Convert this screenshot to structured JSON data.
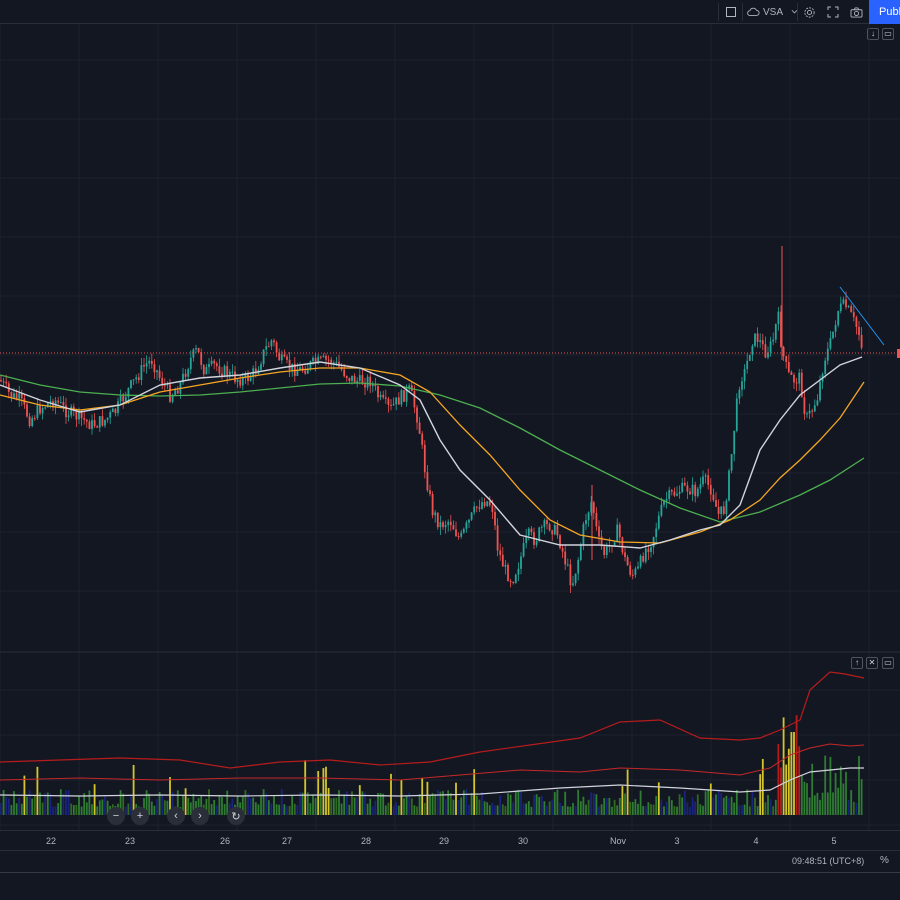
{
  "toolbar": {
    "indicator_label": "VSA",
    "publish_label": "Publish"
  },
  "icons": {
    "rect": "square-icon",
    "cloud": "cloud-icon",
    "chevron": "chevron-down-icon",
    "settings": "gear-icon",
    "fullscreen": "fullscreen-icon",
    "snapshot": "camera-icon"
  },
  "chart_data": {
    "type": "candlestick",
    "x_tick_labels": [
      "22",
      "23",
      "26",
      "27",
      "28",
      "29",
      "30",
      "Nov",
      "3",
      "4",
      "5"
    ],
    "colors": {
      "up": "#26a69a",
      "down": "#ef5350",
      "ma_fast": "#d1d4dc",
      "ma_mid": "#f5a623",
      "ma_slow": "#4caf50",
      "price_line": "#ef5350",
      "trendline": "#2196f3"
    },
    "close_path": [
      [
        0,
        380
      ],
      [
        10,
        395
      ],
      [
        20,
        400
      ],
      [
        30,
        420
      ],
      [
        40,
        408
      ],
      [
        55,
        400
      ],
      [
        65,
        410
      ],
      [
        80,
        418
      ],
      [
        92,
        425
      ],
      [
        105,
        420
      ],
      [
        115,
        412
      ],
      [
        125,
        395
      ],
      [
        135,
        380
      ],
      [
        145,
        365
      ],
      [
        152,
        360
      ],
      [
        160,
        378
      ],
      [
        170,
        395
      ],
      [
        180,
        385
      ],
      [
        190,
        360
      ],
      [
        197,
        350
      ],
      [
        205,
        372
      ],
      [
        215,
        365
      ],
      [
        225,
        372
      ],
      [
        235,
        378
      ],
      [
        245,
        380
      ],
      [
        255,
        372
      ],
      [
        265,
        350
      ],
      [
        272,
        340
      ],
      [
        280,
        360
      ],
      [
        290,
        368
      ],
      [
        300,
        370
      ],
      [
        310,
        365
      ],
      [
        320,
        362
      ],
      [
        330,
        360
      ],
      [
        340,
        368
      ],
      [
        350,
        378
      ],
      [
        360,
        382
      ],
      [
        370,
        380
      ],
      [
        380,
        400
      ],
      [
        390,
        410
      ],
      [
        400,
        398
      ],
      [
        410,
        390
      ],
      [
        418,
        420
      ],
      [
        425,
        470
      ],
      [
        432,
        510
      ],
      [
        440,
        525
      ],
      [
        450,
        520
      ],
      [
        460,
        540
      ],
      [
        470,
        520
      ],
      [
        478,
        505
      ],
      [
        485,
        500
      ],
      [
        492,
        505
      ],
      [
        498,
        550
      ],
      [
        505,
        570
      ],
      [
        512,
        580
      ],
      [
        520,
        560
      ],
      [
        528,
        535
      ],
      [
        535,
        540
      ],
      [
        542,
        528
      ],
      [
        550,
        525
      ],
      [
        558,
        535
      ],
      [
        565,
        560
      ],
      [
        572,
        585
      ],
      [
        578,
        560
      ],
      [
        585,
        520
      ],
      [
        592,
        500
      ],
      [
        598,
        540
      ],
      [
        605,
        555
      ],
      [
        612,
        540
      ],
      [
        618,
        530
      ],
      [
        625,
        560
      ],
      [
        632,
        575
      ],
      [
        638,
        570
      ],
      [
        645,
        550
      ],
      [
        652,
        540
      ],
      [
        658,
        520
      ],
      [
        665,
        500
      ],
      [
        672,
        495
      ],
      [
        680,
        490
      ],
      [
        688,
        488
      ],
      [
        696,
        492
      ],
      [
        704,
        480
      ],
      [
        712,
        490
      ],
      [
        718,
        515
      ],
      [
        724,
        510
      ],
      [
        730,
        470
      ],
      [
        735,
        420
      ],
      [
        740,
        378
      ],
      [
        745,
        372
      ],
      [
        752,
        340
      ],
      [
        758,
        338
      ],
      [
        765,
        352
      ],
      [
        772,
        345
      ],
      [
        778,
        315
      ],
      [
        782,
        350
      ],
      [
        788,
        375
      ],
      [
        794,
        380
      ],
      [
        800,
        378
      ],
      [
        806,
        420
      ],
      [
        812,
        410
      ],
      [
        818,
        395
      ],
      [
        824,
        360
      ],
      [
        830,
        345
      ],
      [
        838,
        310
      ],
      [
        845,
        305
      ],
      [
        852,
        318
      ],
      [
        858,
        330
      ],
      [
        864,
        352
      ]
    ],
    "ma_fast_path": [
      [
        0,
        385
      ],
      [
        40,
        400
      ],
      [
        80,
        412
      ],
      [
        120,
        405
      ],
      [
        160,
        385
      ],
      [
        200,
        378
      ],
      [
        240,
        375
      ],
      [
        280,
        368
      ],
      [
        320,
        362
      ],
      [
        360,
        368
      ],
      [
        400,
        385
      ],
      [
        420,
        400
      ],
      [
        440,
        440
      ],
      [
        460,
        470
      ],
      [
        490,
        500
      ],
      [
        520,
        535
      ],
      [
        560,
        545
      ],
      [
        600,
        545
      ],
      [
        640,
        548
      ],
      [
        670,
        540
      ],
      [
        700,
        530
      ],
      [
        720,
        525
      ],
      [
        740,
        505
      ],
      [
        760,
        450
      ],
      [
        780,
        420
      ],
      [
        800,
        395
      ],
      [
        820,
        380
      ],
      [
        840,
        365
      ],
      [
        862,
        357
      ]
    ],
    "ma_mid_path": [
      [
        0,
        395
      ],
      [
        40,
        405
      ],
      [
        80,
        410
      ],
      [
        120,
        405
      ],
      [
        160,
        392
      ],
      [
        200,
        385
      ],
      [
        240,
        378
      ],
      [
        280,
        372
      ],
      [
        320,
        368
      ],
      [
        360,
        368
      ],
      [
        400,
        375
      ],
      [
        430,
        392
      ],
      [
        460,
        425
      ],
      [
        490,
        455
      ],
      [
        520,
        490
      ],
      [
        550,
        520
      ],
      [
        580,
        535
      ],
      [
        620,
        542
      ],
      [
        660,
        543
      ],
      [
        700,
        532
      ],
      [
        730,
        520
      ],
      [
        760,
        500
      ],
      [
        780,
        478
      ],
      [
        800,
        460
      ],
      [
        820,
        440
      ],
      [
        840,
        418
      ],
      [
        864,
        382
      ]
    ],
    "ma_slow_path": [
      [
        0,
        375
      ],
      [
        40,
        385
      ],
      [
        80,
        392
      ],
      [
        120,
        395
      ],
      [
        160,
        396
      ],
      [
        200,
        395
      ],
      [
        240,
        392
      ],
      [
        280,
        388
      ],
      [
        320,
        384
      ],
      [
        360,
        383
      ],
      [
        400,
        386
      ],
      [
        440,
        395
      ],
      [
        480,
        408
      ],
      [
        520,
        428
      ],
      [
        560,
        450
      ],
      [
        600,
        470
      ],
      [
        640,
        490
      ],
      [
        680,
        508
      ],
      [
        720,
        522
      ],
      [
        760,
        512
      ],
      [
        800,
        495
      ],
      [
        830,
        480
      ],
      [
        864,
        458
      ]
    ],
    "price_line_y": 353,
    "trendline": [
      [
        840,
        287
      ],
      [
        884,
        345
      ]
    ],
    "volume_upper_band": [
      [
        0,
        762
      ],
      [
        60,
        760
      ],
      [
        120,
        758
      ],
      [
        180,
        760
      ],
      [
        230,
        768
      ],
      [
        280,
        762
      ],
      [
        330,
        760
      ],
      [
        380,
        765
      ],
      [
        430,
        762
      ],
      [
        480,
        752
      ],
      [
        530,
        745
      ],
      [
        580,
        738
      ],
      [
        620,
        722
      ],
      [
        660,
        720
      ],
      [
        700,
        738
      ],
      [
        740,
        740
      ],
      [
        760,
        738
      ],
      [
        780,
        730
      ],
      [
        800,
        720
      ],
      [
        810,
        690
      ],
      [
        830,
        672
      ],
      [
        845,
        674
      ],
      [
        864,
        678
      ]
    ],
    "volume_mid_band": [
      [
        0,
        780
      ],
      [
        80,
        778
      ],
      [
        160,
        780
      ],
      [
        240,
        778
      ],
      [
        320,
        778
      ],
      [
        400,
        780
      ],
      [
        460,
        775
      ],
      [
        520,
        770
      ],
      [
        580,
        772
      ],
      [
        620,
        768
      ],
      [
        680,
        770
      ],
      [
        740,
        775
      ],
      [
        770,
        768
      ],
      [
        790,
        755
      ],
      [
        810,
        748
      ],
      [
        830,
        744
      ],
      [
        850,
        746
      ],
      [
        864,
        745
      ]
    ],
    "volume_ma": [
      [
        0,
        795
      ],
      [
        80,
        796
      ],
      [
        160,
        795
      ],
      [
        240,
        796
      ],
      [
        320,
        795
      ],
      [
        400,
        796
      ],
      [
        480,
        794
      ],
      [
        560,
        788
      ],
      [
        620,
        785
      ],
      [
        680,
        788
      ],
      [
        740,
        792
      ],
      [
        770,
        790
      ],
      [
        790,
        780
      ],
      [
        810,
        772
      ],
      [
        830,
        770
      ],
      [
        850,
        768
      ],
      [
        864,
        768
      ]
    ]
  },
  "status": {
    "clock": "09:48:51 (UTC+8)",
    "percent": "%"
  }
}
